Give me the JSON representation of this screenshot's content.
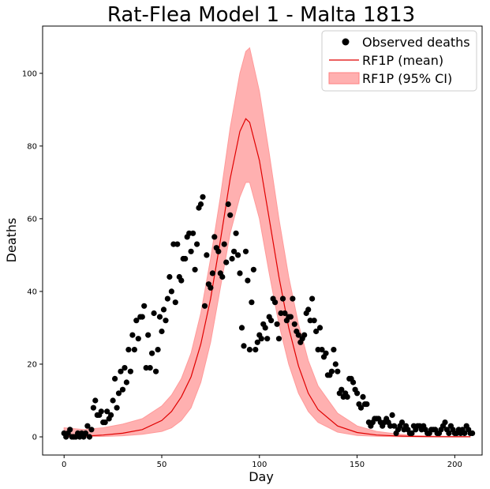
{
  "chart_data": {
    "type": "scatter",
    "title": "Rat-Flea Model 1 - Malta 1813",
    "xlabel": "Day",
    "ylabel": "Deaths",
    "xlim": [
      -11,
      214
    ],
    "ylim": [
      -5,
      113
    ],
    "xticks": [
      0,
      50,
      100,
      150,
      200
    ],
    "yticks": [
      0,
      20,
      40,
      60,
      80,
      100
    ],
    "grid": false,
    "legend_position": "top-right",
    "legend": [
      "Observed deaths",
      "RF1P (mean)",
      "RF1P (95% CI)"
    ],
    "observed": {
      "name": "Observed deaths",
      "color": "#000000",
      "x": [
        0,
        1,
        2,
        3,
        4,
        5,
        6,
        7,
        8,
        9,
        10,
        11,
        12,
        13,
        14,
        15,
        16,
        17,
        18,
        19,
        20,
        21,
        22,
        23,
        24,
        25,
        26,
        27,
        28,
        29,
        30,
        31,
        32,
        33,
        34,
        35,
        36,
        37,
        38,
        39,
        40,
        41,
        42,
        43,
        44,
        45,
        46,
        47,
        48,
        49,
        50,
        51,
        52,
        53,
        54,
        55,
        56,
        57,
        58,
        59,
        60,
        61,
        62,
        63,
        64,
        65,
        66,
        67,
        68,
        69,
        70,
        71,
        72,
        73,
        74,
        75,
        76,
        77,
        78,
        79,
        80,
        81,
        82,
        83,
        84,
        85,
        86,
        87,
        88,
        89,
        90,
        91,
        92,
        93,
        94,
        95,
        96,
        97,
        98,
        99,
        100,
        101,
        102,
        103,
        104,
        105,
        106,
        107,
        108,
        109,
        110,
        111,
        112,
        113,
        114,
        115,
        116,
        117,
        118,
        119,
        120,
        121,
        122,
        123,
        124,
        125,
        126,
        127,
        128,
        129,
        130,
        131,
        132,
        133,
        134,
        135,
        136,
        137,
        138,
        139,
        140,
        141,
        142,
        143,
        144,
        145,
        146,
        147,
        148,
        149,
        150,
        151,
        152,
        153,
        154,
        155,
        156,
        157,
        158,
        159,
        160,
        161,
        162,
        163,
        164,
        165,
        166,
        167,
        168,
        169,
        170,
        171,
        172,
        173,
        174,
        175,
        176,
        177,
        178,
        179,
        180,
        181,
        182,
        183,
        184,
        185,
        186,
        187,
        188,
        189,
        190,
        191,
        192,
        193,
        194,
        195,
        196,
        197,
        198,
        199,
        200,
        201,
        202,
        203,
        204,
        205,
        206,
        207,
        208,
        209
      ],
      "y": [
        1,
        0,
        1,
        2,
        0,
        0,
        0,
        1,
        0,
        1,
        0,
        1,
        3,
        0,
        2,
        8,
        10,
        6,
        6,
        7,
        4,
        4,
        7,
        5,
        6,
        10,
        16,
        8,
        12,
        18,
        13,
        19,
        15,
        24,
        18,
        28,
        24,
        32,
        27,
        33,
        33,
        36,
        19,
        28,
        19,
        23,
        34,
        18,
        24,
        33,
        29,
        35,
        32,
        38,
        44,
        40,
        53,
        37,
        53,
        44,
        43,
        49,
        49,
        55,
        56,
        51,
        56,
        46,
        53,
        63,
        64,
        66,
        36,
        50,
        42,
        41,
        45,
        55,
        52,
        51,
        45,
        44,
        53,
        48,
        64,
        61,
        49,
        51,
        56,
        50,
        45,
        30,
        25,
        51,
        43,
        24,
        37,
        46,
        24,
        26,
        28,
        27,
        31,
        30,
        27,
        33,
        32,
        38,
        37,
        31,
        27,
        34,
        38,
        34,
        32,
        33,
        33,
        38,
        31,
        29,
        28,
        26,
        27,
        28,
        34,
        35,
        32,
        38,
        32,
        29,
        24,
        30,
        24,
        22,
        23,
        17,
        17,
        18,
        24,
        20,
        18,
        12,
        13,
        11,
        12,
        11,
        16,
        16,
        15,
        13,
        12,
        9,
        8,
        11,
        9,
        9,
        4,
        3,
        4,
        5,
        5,
        5,
        4,
        3,
        4,
        5,
        4,
        3,
        6,
        3,
        1,
        2,
        3,
        4,
        2,
        3,
        2,
        1,
        1,
        3,
        2,
        3,
        3,
        2,
        3,
        2,
        1,
        1,
        2,
        2,
        2,
        1,
        1,
        2,
        3,
        4,
        2,
        1,
        3,
        2,
        1,
        1,
        2,
        1,
        2,
        1,
        3,
        2,
        1,
        1
      ],
      "marker": "circle"
    },
    "mean": {
      "name": "RF1P (mean)",
      "color": "#e00000",
      "x": [
        0,
        10,
        20,
        30,
        40,
        50,
        55,
        60,
        65,
        70,
        75,
        80,
        85,
        90,
        93,
        95,
        100,
        105,
        110,
        115,
        120,
        125,
        130,
        140,
        150,
        160,
        170,
        180,
        190,
        200,
        208
      ],
      "y": [
        0.1,
        0.2,
        0.5,
        1.0,
        2.0,
        4.5,
        7.0,
        11.0,
        16.5,
        25.5,
        38.0,
        54.0,
        71.0,
        84.0,
        87.5,
        86.5,
        76.0,
        60.0,
        44.0,
        30.0,
        19.5,
        12.0,
        7.5,
        3.0,
        1.2,
        0.5,
        0.25,
        0.1,
        0.05,
        0.03,
        0.02
      ]
    },
    "ci": {
      "name": "RF1P (95% CI)",
      "color": "#ff9a9a",
      "x": [
        0,
        10,
        20,
        30,
        40,
        50,
        55,
        60,
        65,
        70,
        75,
        80,
        85,
        90,
        93,
        95,
        100,
        105,
        110,
        115,
        120,
        125,
        130,
        140,
        150,
        160,
        170,
        180,
        190,
        200,
        208
      ],
      "lower": [
        0.0,
        0.05,
        0.1,
        0.3,
        0.7,
        1.5,
        2.5,
        4.5,
        8.0,
        15.0,
        26.0,
        41.0,
        56.0,
        66.0,
        70.0,
        70.0,
        60.0,
        45.0,
        31.0,
        20.0,
        12.0,
        7.0,
        4.0,
        1.3,
        0.4,
        0.15,
        0.05,
        0.02,
        0.0,
        0.0,
        0.0
      ],
      "upper": [
        2.5,
        2.0,
        2.5,
        3.5,
        5.0,
        8.5,
        11.5,
        16.0,
        23.0,
        34.0,
        49.0,
        66.0,
        85.0,
        100.0,
        106.0,
        107.0,
        95.0,
        78.0,
        60.0,
        44.0,
        31.0,
        21.0,
        14.0,
        6.5,
        3.0,
        1.5,
        0.8,
        0.4,
        0.2,
        0.1,
        0.05
      ]
    }
  }
}
